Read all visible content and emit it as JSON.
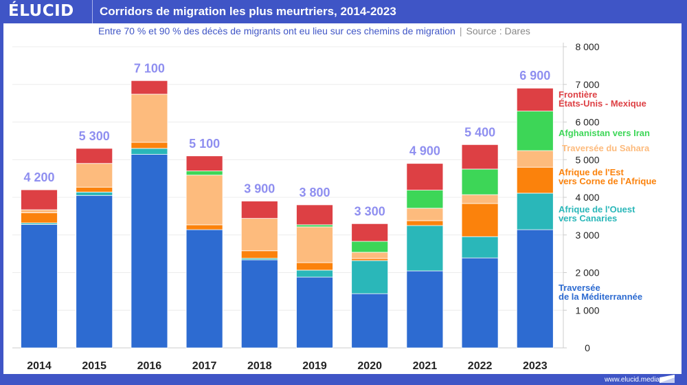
{
  "header": {
    "logo": "ÉLUCID",
    "title": "Corridors de migration les plus meurtriers, 2014-2023",
    "subtitle": "Entre 70 % et 90 % des décès de migrants ont eu lieu sur ces chemins de migration",
    "source": "Source : Dares"
  },
  "footer": {
    "url": "www.elucid.media"
  },
  "chart_data": {
    "type": "bar",
    "stacked": true,
    "title": "Corridors de migration les plus meurtriers, 2014-2023",
    "categories": [
      "2014",
      "2015",
      "2016",
      "2017",
      "2018",
      "2019",
      "2020",
      "2021",
      "2022",
      "2023"
    ],
    "totals": [
      4200,
      5300,
      7100,
      5100,
      3900,
      3800,
      3300,
      4900,
      5400,
      6900
    ],
    "total_labels": [
      "4 200",
      "5 300",
      "7 100",
      "5 100",
      "3 900",
      "3 800",
      "3 300",
      "4 900",
      "5 400",
      "6 900"
    ],
    "series": [
      {
        "name": "Traversée de la Méditerrannée",
        "legend": [
          "Traversée",
          "de la Méditerrannée"
        ],
        "color": "#2d6bd1",
        "values": [
          3280,
          4050,
          5140,
          3140,
          2340,
          1880,
          1440,
          2045,
          2390,
          3140
        ]
      },
      {
        "name": "Afrique de l'Ouest vers Canaries",
        "legend": [
          "Afrique de l'Ouest",
          "vers Canaries"
        ],
        "color": "#2ab7b9",
        "values": [
          40,
          90,
          160,
          0,
          40,
          185,
          880,
          1205,
          565,
          970
        ]
      },
      {
        "name": "Afrique de l'Est vers Corne de l'Afrique",
        "legend": [
          "Afrique de l'Est",
          "vers Corne de l'Afrique"
        ],
        "color": "#fb820c",
        "values": [
          270,
          130,
          160,
          130,
          200,
          200,
          55,
          130,
          880,
          690
        ]
      },
      {
        "name": "Traversée du Sahara",
        "legend": [
          "Traversée du Sahara"
        ],
        "color": "#fdbb7d",
        "values": [
          80,
          630,
          1280,
          1320,
          860,
          950,
          165,
          330,
          235,
          440
        ]
      },
      {
        "name": "Afghanistan vers Iran",
        "legend": [
          "Afghanistan vers Iran"
        ],
        "color": "#3dd657",
        "values": [
          0,
          0,
          0,
          110,
          0,
          55,
          290,
          480,
          680,
          1050
        ]
      },
      {
        "name": "Frontière États-Unis - Mexique",
        "legend": [
          "Frontière",
          "États-Unis - Mexique"
        ],
        "color": "#dd4044",
        "values": [
          530,
          400,
          360,
          400,
          460,
          530,
          470,
          710,
          650,
          610
        ]
      }
    ],
    "yaxis": {
      "position": "right",
      "ylim": [
        0,
        8000
      ],
      "ticks": [
        0,
        1000,
        2000,
        3000,
        4000,
        5000,
        6000,
        7000,
        8000
      ],
      "tick_labels": [
        "0",
        "1 000",
        "2 000",
        "3 000",
        "4 000",
        "5 000",
        "6 000",
        "7 000",
        "8 000"
      ]
    },
    "grid": true,
    "total_label_color": "#8f8ff0",
    "legend": "right, inline"
  }
}
